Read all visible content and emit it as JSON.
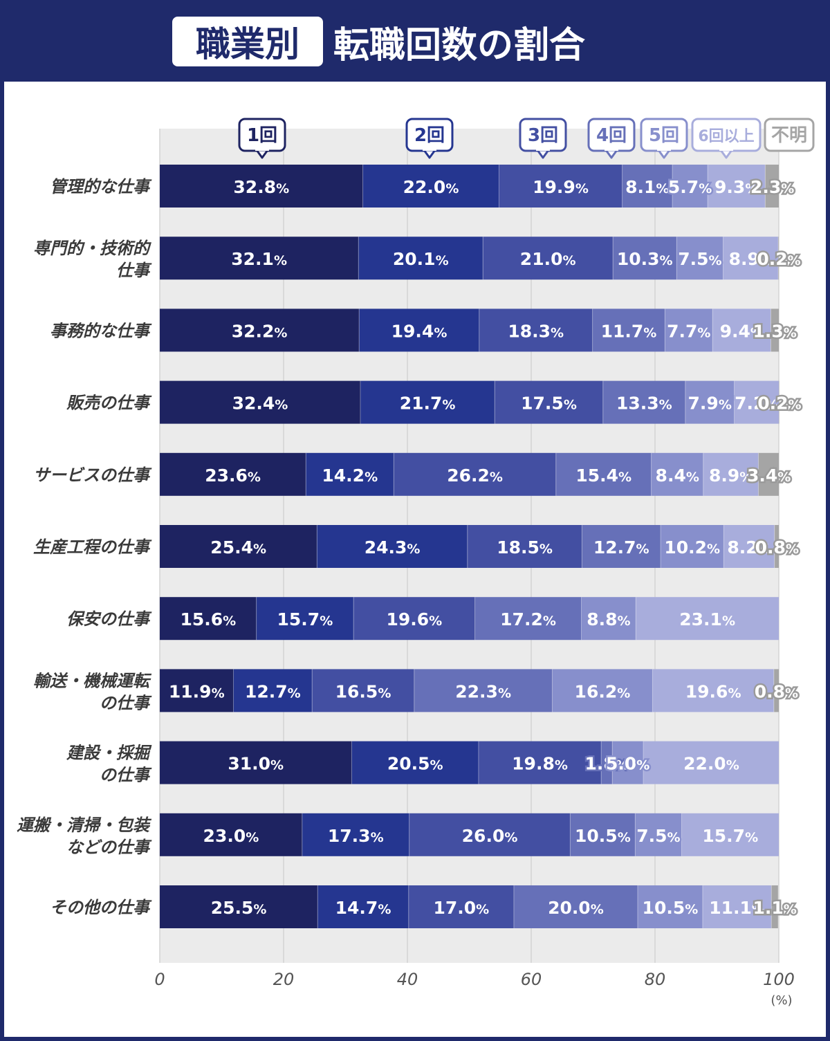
{
  "header": {
    "badge": "職業別",
    "title": "転職回数の割合"
  },
  "colors": {
    "header_bg": "#1f2a6b",
    "plot_bg": "#ebebeb",
    "series": [
      "#1e2361",
      "#253690",
      "#434fa2",
      "#6670b8",
      "#878fcc",
      "#a8addc",
      "#a5a5a5"
    ]
  },
  "chart_data": {
    "type": "bar",
    "orientation": "horizontal",
    "stacked": true,
    "title": "職業別 転職回数の割合",
    "xlabel": "(%)",
    "ylabel": "",
    "xlim": [
      0,
      100
    ],
    "xticks": [
      0,
      20,
      40,
      60,
      80,
      100
    ],
    "grid": true,
    "legend": "top",
    "categories": [
      "管理的な仕事",
      "専門的・技術的仕事",
      "事務的な仕事",
      "販売の仕事",
      "サービスの仕事",
      "生産工程の仕事",
      "保安の仕事",
      "輸送・機械運転の仕事",
      "建設・採掘の仕事",
      "運搬・清掃・包装などの仕事",
      "その他の仕事"
    ],
    "category_lines": [
      [
        "管理的な仕事"
      ],
      [
        "専門的・技術的",
        "仕事"
      ],
      [
        "事務的な仕事"
      ],
      [
        "販売の仕事"
      ],
      [
        "サービスの仕事"
      ],
      [
        "生産工程の仕事"
      ],
      [
        "保安の仕事"
      ],
      [
        "輸送・機械運転",
        "の仕事"
      ],
      [
        "建設・採掘",
        "の仕事"
      ],
      [
        "運搬・清掃・包装",
        "などの仕事"
      ],
      [
        "その他の仕事"
      ]
    ],
    "series": [
      {
        "name": "1回",
        "values": [
          32.8,
          32.1,
          32.2,
          32.4,
          23.6,
          25.4,
          15.6,
          11.9,
          31.0,
          23.0,
          25.5
        ]
      },
      {
        "name": "2回",
        "values": [
          22.0,
          20.1,
          19.4,
          21.7,
          14.2,
          24.3,
          15.7,
          12.7,
          20.5,
          17.3,
          14.7
        ]
      },
      {
        "name": "3回",
        "values": [
          19.9,
          21.0,
          18.3,
          17.5,
          26.2,
          18.5,
          19.6,
          16.5,
          19.8,
          26.0,
          17.0
        ]
      },
      {
        "name": "4回",
        "values": [
          8.1,
          10.3,
          11.7,
          13.3,
          15.4,
          12.7,
          17.2,
          22.3,
          1.8,
          10.5,
          20.0
        ]
      },
      {
        "name": "5回",
        "values": [
          5.7,
          7.5,
          7.7,
          7.9,
          8.4,
          10.2,
          8.8,
          16.2,
          5.0,
          7.5,
          10.5
        ]
      },
      {
        "name": "6回以上",
        "values": [
          9.3,
          8.9,
          9.4,
          7.2,
          8.9,
          8.2,
          23.1,
          19.6,
          22.0,
          15.7,
          11.1
        ]
      },
      {
        "name": "不明",
        "values": [
          2.3,
          0.2,
          1.3,
          0.2,
          3.4,
          0.8,
          null,
          0.8,
          null,
          null,
          1.1
        ]
      }
    ]
  }
}
